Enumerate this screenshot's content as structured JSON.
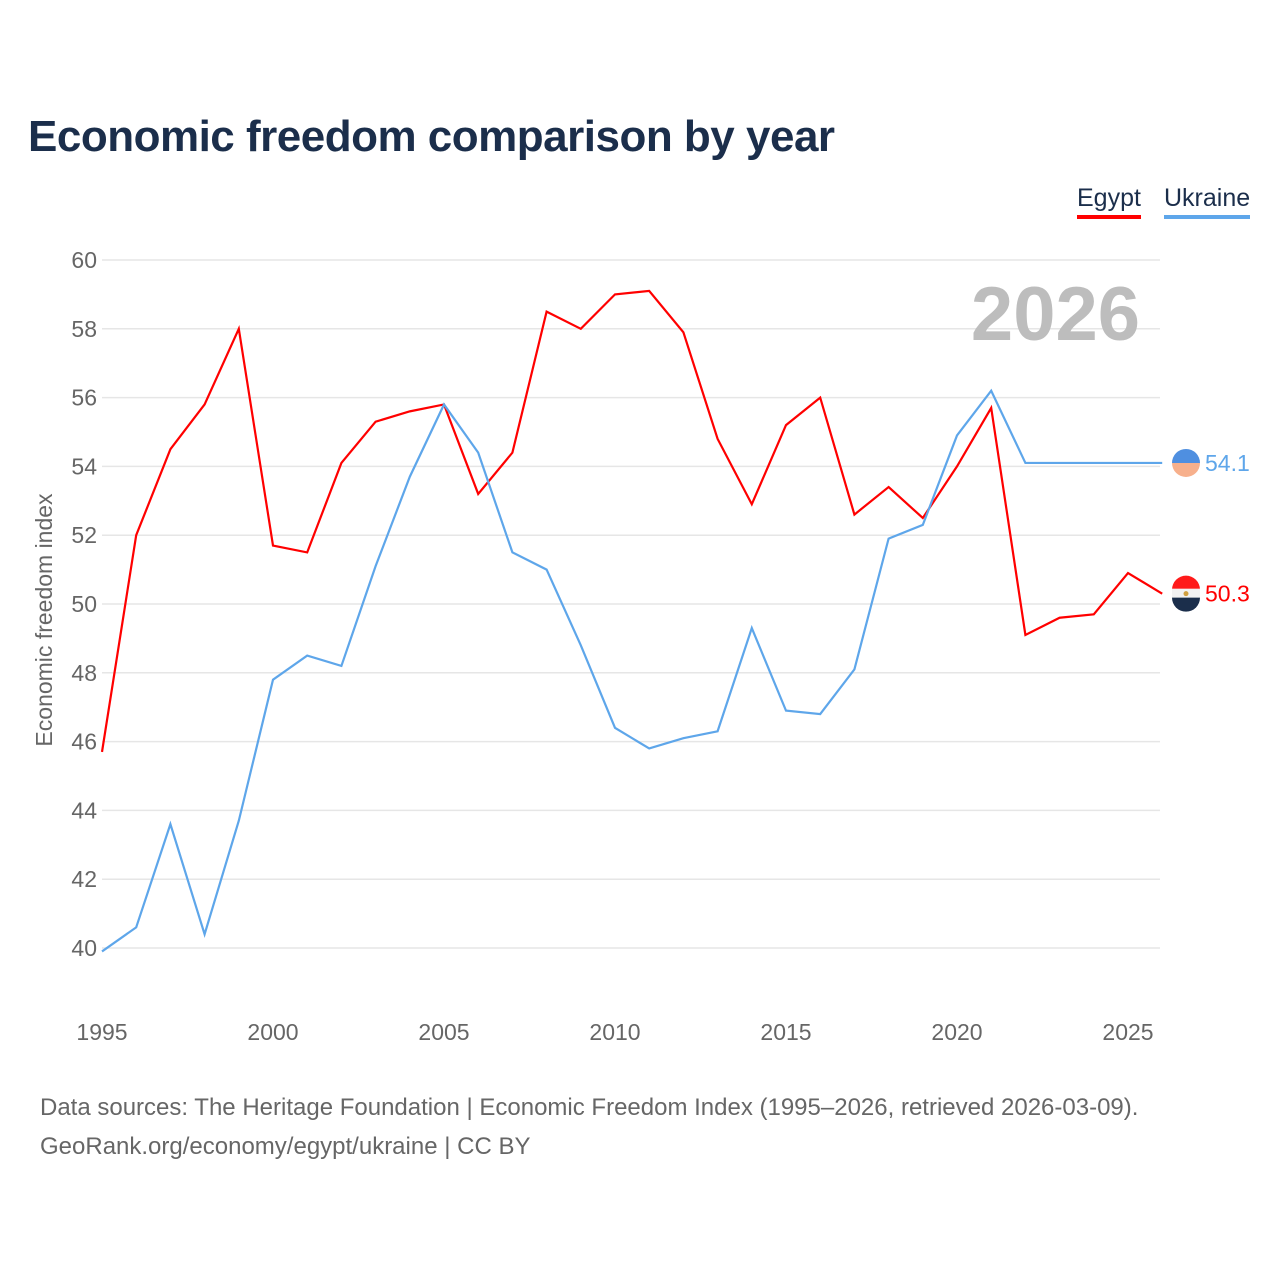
{
  "chart_data": {
    "type": "line",
    "title": "Economic freedom comparison by year",
    "xlabel": "",
    "ylabel": "Economic freedom index",
    "xlim": [
      1995,
      2026
    ],
    "ylim": [
      40,
      60
    ],
    "yticks": [
      "40",
      "42",
      "44",
      "46",
      "48",
      "50",
      "52",
      "54",
      "56",
      "58",
      "60"
    ],
    "xticks": [
      "1995",
      "2000",
      "2005",
      "2010",
      "2015",
      "2020",
      "2025"
    ],
    "year_label": "2026",
    "grid": true,
    "legend_position": "top-right",
    "x": [
      1995,
      1996,
      1997,
      1998,
      1999,
      2000,
      2001,
      2002,
      2003,
      2004,
      2005,
      2006,
      2007,
      2008,
      2009,
      2010,
      2011,
      2012,
      2013,
      2014,
      2015,
      2016,
      2017,
      2018,
      2019,
      2020,
      2021,
      2022,
      2023,
      2024,
      2025,
      2026
    ],
    "series": [
      {
        "name": "Egypt",
        "color": "#ff0000",
        "end_label": "50.3",
        "values": [
          45.7,
          52.0,
          54.5,
          55.8,
          58.0,
          51.7,
          51.5,
          54.1,
          55.3,
          55.6,
          55.8,
          53.2,
          54.4,
          58.5,
          58.0,
          59.0,
          59.1,
          57.9,
          54.8,
          52.9,
          55.2,
          56.0,
          52.6,
          53.4,
          52.5,
          54.0,
          55.7,
          49.1,
          49.6,
          49.7,
          50.9,
          50.3
        ]
      },
      {
        "name": "Ukraine",
        "color": "#5ea6ea",
        "end_label": "54.1",
        "values": [
          39.9,
          40.6,
          43.6,
          40.4,
          43.7,
          47.8,
          48.5,
          48.2,
          51.1,
          53.7,
          55.8,
          54.4,
          51.5,
          51.0,
          48.8,
          46.4,
          45.8,
          46.1,
          46.3,
          49.3,
          46.9,
          46.8,
          48.1,
          51.9,
          52.3,
          54.9,
          56.2,
          54.1,
          54.1,
          54.1,
          54.1,
          54.1
        ]
      }
    ]
  },
  "source": {
    "line1": "Data sources: The Heritage Foundation | Economic Freedom Index (1995–2026, retrieved 2026-03-09).",
    "line2": "GeoRank.org/economy/egypt/ukraine | CC BY"
  }
}
